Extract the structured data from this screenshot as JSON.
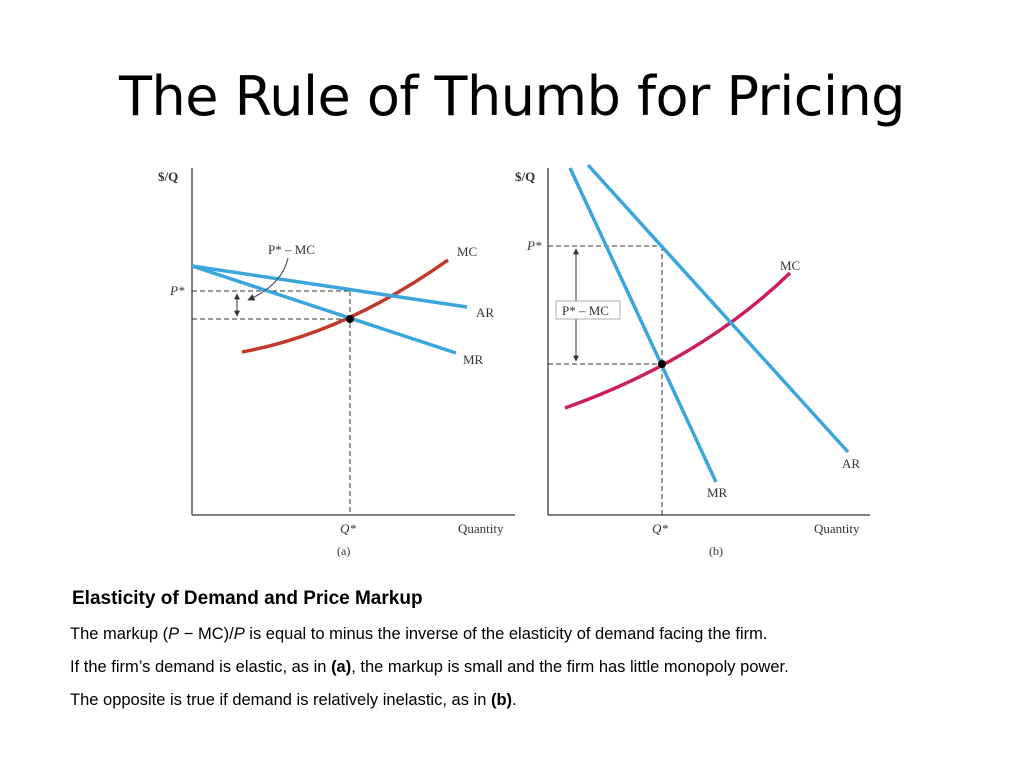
{
  "slide": {
    "title": "The Rule of Thumb for Pricing"
  },
  "figure": {
    "y_axis_label": "$/Q",
    "x_axis_label": "Quantity",
    "panel_a": {
      "tag": "(a)",
      "price_label": "P*",
      "quantity_label": "Q*",
      "markup_label": "P* – MC",
      "mc_label": "MC",
      "ar_label": "AR",
      "mr_label": "MR"
    },
    "panel_b": {
      "tag": "(b)",
      "price_label": "P*",
      "quantity_label": "Q*",
      "markup_label": "P* – MC",
      "mc_label": "MC",
      "ar_label": "AR",
      "mr_label": "MR"
    },
    "colors": {
      "demand_blue": "#3aa6dc",
      "mc_a": "#c0392b",
      "mc_b": "#cc1f55"
    }
  },
  "caption": {
    "heading": "Elasticity of Demand and Price Markup",
    "line1_pre": "The markup (",
    "line1_p1": "P",
    "line1_mid": " − MC)/",
    "line1_p2": "P",
    "line1_post": " is equal to minus the inverse of the elasticity of demand facing the firm.",
    "line2_pre": "If the firm’s demand is elastic, as in ",
    "line2_bold": "(a)",
    "line2_post": ", the markup is small and the firm has little monopoly power.",
    "line3_pre": "The opposite is true if demand is relatively inelastic, as in ",
    "line3_bold": "(b)",
    "line3_post": "."
  }
}
